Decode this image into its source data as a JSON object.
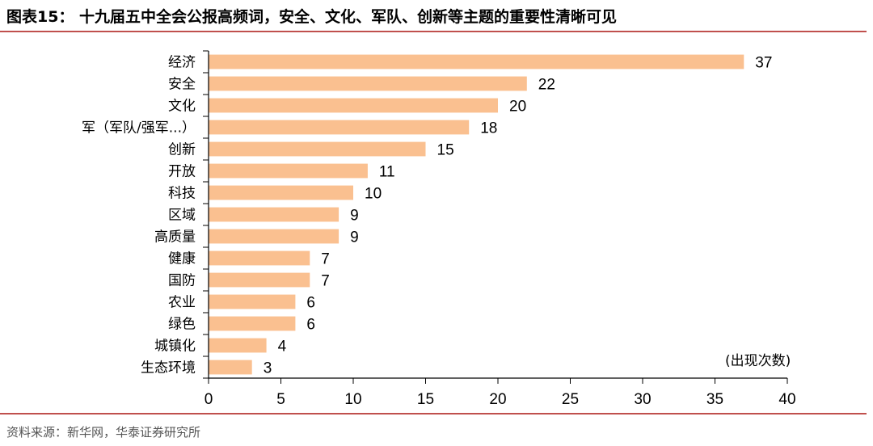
{
  "title": "图表15： 十九届五中全会公报高频词，安全、文化、军队、创新等主题的重要性清晰可见",
  "source": "资料来源：新华网，华泰证券研究所",
  "colors": {
    "bar": "#FAC090",
    "rule": "#C0504D",
    "axis": "#000000"
  },
  "chart_data": {
    "type": "bar",
    "orientation": "horizontal",
    "categories": [
      "经济",
      "安全",
      "文化",
      "军（军队/强军...）",
      "创新",
      "开放",
      "科技",
      "区域",
      "高质量",
      "健康",
      "国防",
      "农业",
      "绿色",
      "城镇化",
      "生态环境"
    ],
    "values": [
      37,
      22,
      20,
      18,
      15,
      11,
      10,
      9,
      9,
      7,
      7,
      6,
      6,
      4,
      3
    ],
    "xlim": [
      0,
      40
    ],
    "xticks": [
      0,
      5,
      10,
      15,
      20,
      25,
      30,
      35,
      40
    ],
    "unit_label": "(出现次数)",
    "data_labels": true,
    "grid": false
  }
}
